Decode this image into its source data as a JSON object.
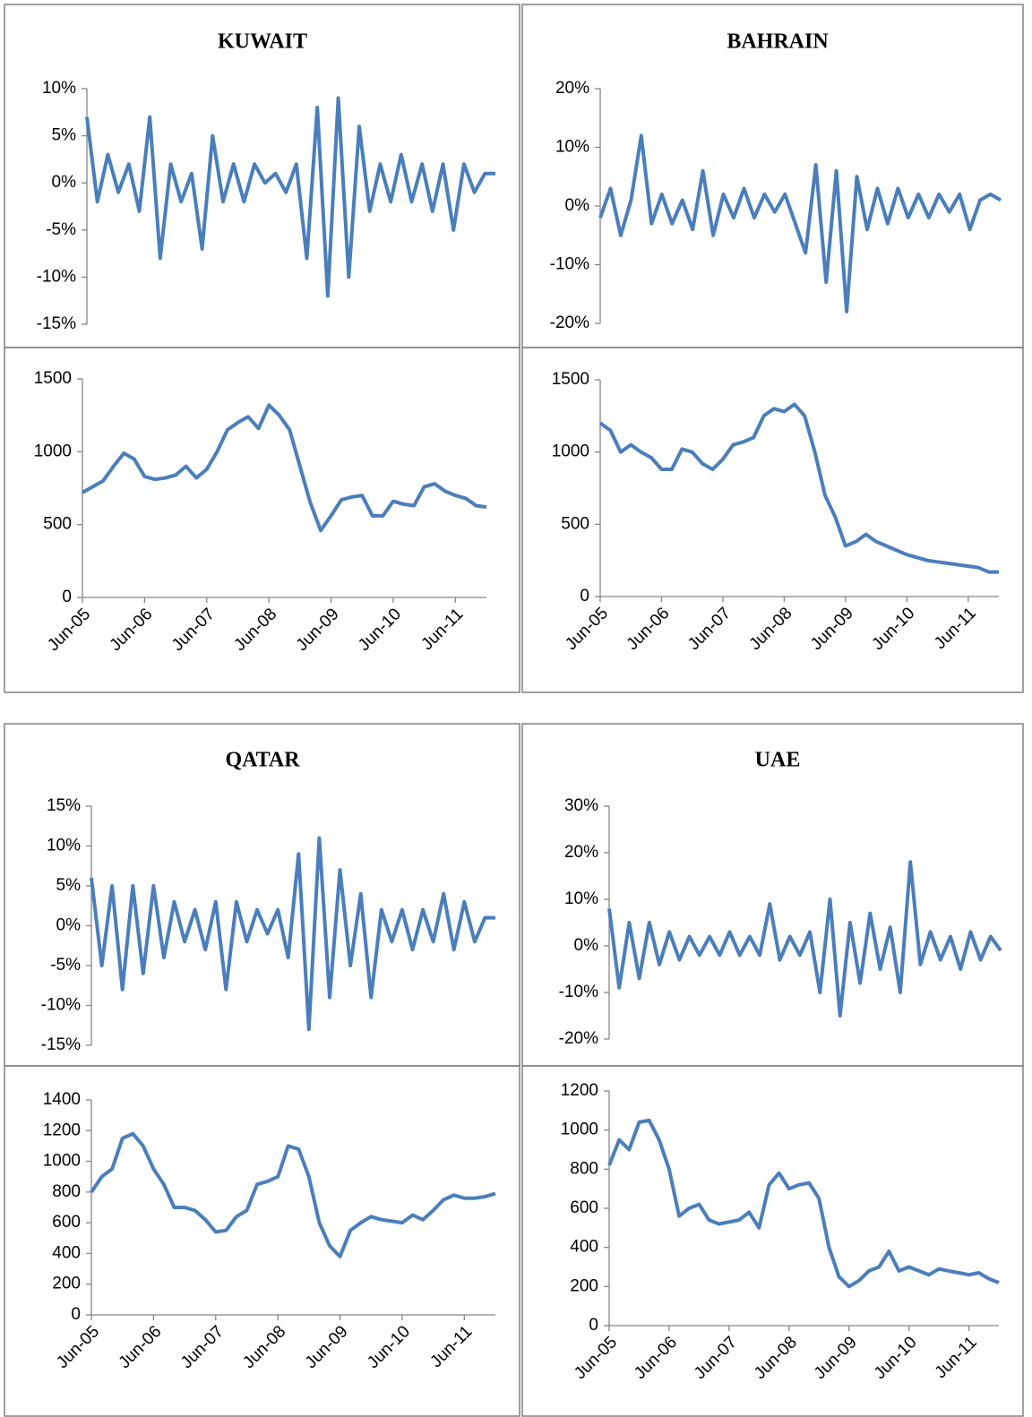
{
  "chart_data": [
    {
      "type": "line",
      "title": "KUWAIT",
      "color": "#4a7ebb",
      "values": [
        7,
        -2,
        3,
        -1,
        2,
        -3,
        7,
        -8,
        2,
        -2,
        1,
        -7,
        5,
        -2,
        2,
        -2,
        2,
        0,
        1,
        -1,
        2,
        -8,
        8,
        -12,
        9,
        -10,
        6,
        -3,
        2,
        -2,
        3,
        -2,
        2,
        -3,
        2,
        -5,
        2,
        -1,
        1,
        1
      ],
      "ylim": [
        -15,
        10
      ],
      "yticks": [
        {
          "value": -15,
          "label": "-15%"
        },
        {
          "value": -10,
          "label": "-10%"
        },
        {
          "value": -5,
          "label": "-5%"
        },
        {
          "value": 0,
          "label": "0%"
        },
        {
          "value": 5,
          "label": "5%"
        },
        {
          "value": 10,
          "label": "10%"
        }
      ]
    },
    {
      "type": "line",
      "color": "#4a7ebb",
      "categories": [
        "Jun-05",
        null,
        null,
        null,
        null,
        null,
        "Jun-06",
        null,
        null,
        null,
        null,
        null,
        "Jun-07",
        null,
        null,
        null,
        null,
        null,
        "Jun-08",
        null,
        null,
        null,
        null,
        null,
        "Jun-09",
        null,
        null,
        null,
        null,
        null,
        "Jun-10",
        null,
        null,
        null,
        null,
        null,
        "Jun-11",
        null,
        null,
        null
      ],
      "values": [
        720,
        760,
        800,
        900,
        990,
        950,
        830,
        810,
        820,
        840,
        900,
        820,
        880,
        1000,
        1150,
        1200,
        1240,
        1160,
        1320,
        1250,
        1150,
        900,
        650,
        460,
        560,
        670,
        690,
        700,
        560,
        560,
        660,
        640,
        630,
        760,
        780,
        730,
        700,
        680,
        630,
        620
      ],
      "ylim": [
        0,
        1500
      ],
      "yticks": [
        0,
        500,
        1000,
        1500
      ]
    },
    {
      "type": "line",
      "title": "BAHRAIN",
      "color": "#4a7ebb",
      "values": [
        -2,
        3,
        -5,
        1,
        12,
        -3,
        2,
        -3,
        1,
        -4,
        6,
        -5,
        2,
        -2,
        3,
        -2,
        2,
        -1,
        2,
        -3,
        -8,
        7,
        -13,
        6,
        -18,
        5,
        -4,
        3,
        -3,
        3,
        -2,
        2,
        -2,
        2,
        -1,
        2,
        -4,
        1,
        2,
        1
      ],
      "ylim": [
        -20,
        20
      ],
      "yticks": [
        {
          "value": -20,
          "label": "-20%"
        },
        {
          "value": -10,
          "label": "-10%"
        },
        {
          "value": 0,
          "label": "0%"
        },
        {
          "value": 10,
          "label": "10%"
        },
        {
          "value": 20,
          "label": "20%"
        }
      ]
    },
    {
      "type": "line",
      "color": "#4a7ebb",
      "categories": [
        "Jun-05",
        null,
        null,
        null,
        null,
        null,
        "Jun-06",
        null,
        null,
        null,
        null,
        null,
        "Jun-07",
        null,
        null,
        null,
        null,
        null,
        "Jun-08",
        null,
        null,
        null,
        null,
        null,
        "Jun-09",
        null,
        null,
        null,
        null,
        null,
        "Jun-10",
        null,
        null,
        null,
        null,
        null,
        "Jun-11",
        null,
        null,
        null
      ],
      "values": [
        1200,
        1150,
        1000,
        1050,
        1000,
        960,
        880,
        880,
        1020,
        1000,
        920,
        880,
        950,
        1050,
        1070,
        1100,
        1250,
        1300,
        1280,
        1330,
        1250,
        1000,
        700,
        550,
        350,
        380,
        430,
        380,
        350,
        320,
        290,
        270,
        250,
        240,
        230,
        220,
        210,
        200,
        170,
        170
      ],
      "ylim": [
        0,
        1500
      ],
      "yticks": [
        0,
        500,
        1000,
        1500
      ]
    },
    {
      "type": "line",
      "title": "QATAR",
      "color": "#4a7ebb",
      "values": [
        6,
        -5,
        5,
        -8,
        5,
        -6,
        5,
        -4,
        3,
        -2,
        2,
        -3,
        3,
        -8,
        3,
        -2,
        2,
        -1,
        2,
        -4,
        9,
        -13,
        11,
        -9,
        7,
        -5,
        4,
        -9,
        2,
        -2,
        2,
        -3,
        2,
        -2,
        4,
        -3,
        3,
        -2,
        1,
        1
      ],
      "ylim": [
        -15,
        15
      ],
      "yticks": [
        {
          "value": -15,
          "label": "-15%"
        },
        {
          "value": -10,
          "label": "-10%"
        },
        {
          "value": -5,
          "label": "-5%"
        },
        {
          "value": 0,
          "label": "0%"
        },
        {
          "value": 5,
          "label": "5%"
        },
        {
          "value": 10,
          "label": "10%"
        },
        {
          "value": 15,
          "label": "15%"
        }
      ]
    },
    {
      "type": "line",
      "color": "#4a7ebb",
      "categories": [
        "Jun-05",
        null,
        null,
        null,
        null,
        null,
        "Jun-06",
        null,
        null,
        null,
        null,
        null,
        "Jun-07",
        null,
        null,
        null,
        null,
        null,
        "Jun-08",
        null,
        null,
        null,
        null,
        null,
        "Jun-09",
        null,
        null,
        null,
        null,
        null,
        "Jun-10",
        null,
        null,
        null,
        null,
        null,
        "Jun-11",
        null,
        null,
        null
      ],
      "values": [
        800,
        900,
        950,
        1150,
        1180,
        1100,
        950,
        850,
        700,
        700,
        680,
        620,
        540,
        550,
        640,
        680,
        850,
        870,
        900,
        1100,
        1080,
        900,
        600,
        450,
        380,
        550,
        600,
        640,
        620,
        610,
        600,
        650,
        620,
        680,
        750,
        780,
        760,
        760,
        770,
        790
      ],
      "ylim": [
        0,
        1400
      ],
      "yticks": [
        0,
        200,
        400,
        600,
        800,
        1000,
        1200,
        1400
      ]
    },
    {
      "type": "line",
      "title": "UAE",
      "color": "#4a7ebb",
      "values": [
        8,
        -9,
        5,
        -7,
        5,
        -4,
        3,
        -3,
        2,
        -2,
        2,
        -2,
        3,
        -2,
        2,
        -2,
        9,
        -3,
        2,
        -2,
        3,
        -10,
        10,
        -15,
        5,
        -8,
        7,
        -5,
        4,
        -10,
        18,
        -4,
        3,
        -3,
        2,
        -5,
        3,
        -3,
        2,
        -1
      ],
      "ylim": [
        -20,
        30
      ],
      "yticks": [
        {
          "value": -20,
          "label": "-20%"
        },
        {
          "value": -10,
          "label": "-10%"
        },
        {
          "value": 0,
          "label": "0%"
        },
        {
          "value": 10,
          "label": "10%"
        },
        {
          "value": 20,
          "label": "20%"
        },
        {
          "value": 30,
          "label": "30%"
        }
      ]
    },
    {
      "type": "line",
      "color": "#4a7ebb",
      "categories": [
        "Jun-05",
        null,
        null,
        null,
        null,
        null,
        "Jun-06",
        null,
        null,
        null,
        null,
        null,
        "Jun-07",
        null,
        null,
        null,
        null,
        null,
        "Jun-08",
        null,
        null,
        null,
        null,
        null,
        "Jun-09",
        null,
        null,
        null,
        null,
        null,
        "Jun-10",
        null,
        null,
        null,
        null,
        null,
        "Jun-11",
        null,
        null,
        null
      ],
      "values": [
        820,
        950,
        900,
        1040,
        1050,
        950,
        800,
        560,
        600,
        620,
        540,
        520,
        530,
        540,
        580,
        500,
        720,
        780,
        700,
        720,
        730,
        650,
        400,
        250,
        200,
        230,
        280,
        300,
        380,
        280,
        300,
        280,
        260,
        290,
        280,
        270,
        260,
        270,
        240,
        220
      ],
      "ylim": [
        0,
        1200
      ],
      "yticks": [
        0,
        200,
        400,
        600,
        800,
        1000,
        1200
      ]
    }
  ]
}
